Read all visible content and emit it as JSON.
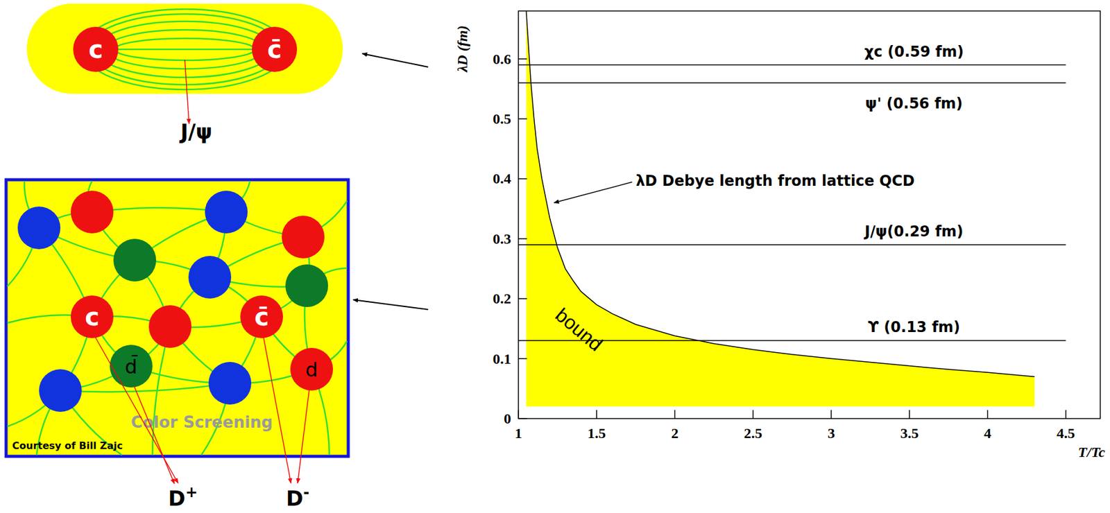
{
  "chart_data": {
    "type": "line",
    "xlabel": "T/Tc",
    "ylabel": "λD (fm)",
    "x": [
      1.05,
      1.06,
      1.07,
      1.08,
      1.1,
      1.12,
      1.15,
      1.2,
      1.25,
      1.3,
      1.35,
      1.4,
      1.5,
      1.6,
      1.75,
      2,
      2.25,
      2.5,
      2.75,
      3,
      3.25,
      3.5,
      3.75,
      4,
      4.3
    ],
    "series": [
      {
        "color": "#ffff00",
        "values": [
          0.68,
          0.64,
          0.6,
          0.56,
          0.5,
          0.45,
          0.4,
          0.335,
          0.285,
          0.25,
          0.23,
          0.212,
          0.19,
          0.175,
          0.157,
          0.138,
          0.125,
          0.115,
          0.107,
          0.1,
          0.094,
          0.088,
          0.082,
          0.077,
          0.07
        ]
      }
    ],
    "fill_bottom": 0.02,
    "hlines": [
      {
        "label": "χc (0.59 fm)",
        "value": 0.59
      },
      {
        "label": "ψ' (0.56 fm)",
        "value": 0.56
      },
      {
        "label": "J/ψ(0.29 fm)",
        "value": 0.29
      },
      {
        "label": "ϒ (0.13 fm)",
        "value": 0.13
      }
    ],
    "annotations": [
      {
        "text": "λD Debye length from lattice QCD",
        "x": 1.22,
        "y": 0.36
      },
      {
        "text": "bound",
        "x": 1.36,
        "y": 0.14
      }
    ],
    "xlim": [
      1,
      4.72
    ],
    "ylim": [
      0,
      0.68
    ],
    "xticks": [
      1,
      1.5,
      2,
      2.5,
      3,
      3.5,
      4,
      4.5
    ],
    "yticks": [
      0,
      0.1,
      0.2,
      0.3,
      0.4,
      0.5,
      0.6
    ],
    "grid": false
  },
  "diagram": {
    "bound_state": {
      "quark": "c",
      "antiquark": "c̄",
      "product": "J/ψ"
    },
    "plasma": {
      "quark": "c",
      "antiquark": "c̄",
      "light_antiquark": "d̄",
      "light_quark": "d",
      "products": [
        "D+",
        "D-"
      ],
      "caption": "Color Screening",
      "credit": "Courtesy of Bill Zajc"
    }
  }
}
